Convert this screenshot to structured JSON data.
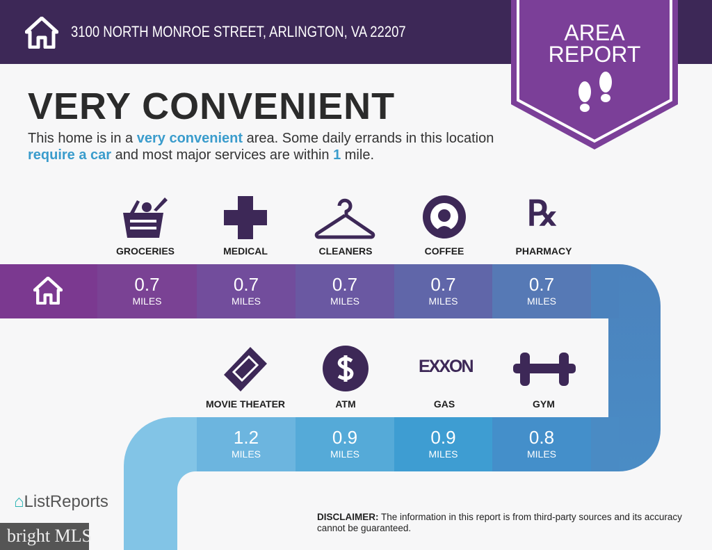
{
  "header": {
    "address": "3100 NORTH MONROE STREET, ARLINGTON, VA 22207",
    "icon": "house-icon"
  },
  "badge": {
    "line1": "AREA",
    "line2": "REPORT",
    "icon": "footprints-icon"
  },
  "summary": {
    "title": "VERY CONVENIENT",
    "p1": "This home is in a ",
    "hl1": "very convenient",
    "p2": " area. Some daily errands in this location ",
    "hl2": "require a car",
    "p3": " and most major services are within ",
    "hl3": "1",
    "p4": " mile."
  },
  "services": [
    {
      "label": "GROCERIES",
      "value": "0.7",
      "unit": "MILES",
      "icon": "basket-icon"
    },
    {
      "label": "MEDICAL",
      "value": "0.7",
      "unit": "MILES",
      "icon": "medical-cross-icon"
    },
    {
      "label": "CLEANERS",
      "value": "0.7",
      "unit": "MILES",
      "icon": "hanger-icon"
    },
    {
      "label": "COFFEE",
      "value": "0.7",
      "unit": "MILES",
      "icon": "starbucks-logo-icon"
    },
    {
      "label": "PHARMACY",
      "value": "0.7",
      "unit": "MILES",
      "icon": "rx-icon"
    },
    {
      "label": "MOVIE THEATER",
      "value": "1.2",
      "unit": "MILES",
      "icon": "ticket-icon"
    },
    {
      "label": "ATM",
      "value": "0.9",
      "unit": "MILES",
      "icon": "dollar-icon"
    },
    {
      "label": "GAS",
      "value": "0.9",
      "unit": "MILES",
      "icon": "exxon-logo-icon",
      "logo_text": "EXXON"
    },
    {
      "label": "GYM",
      "value": "0.8",
      "unit": "MILES",
      "icon": "dumbbell-icon"
    }
  ],
  "footer": {
    "brand": "ListReports",
    "disclaimer_label": "DISCLAIMER:",
    "disclaimer": " The information in this report is from third-party sources and its accuracy cannot be guaranteed.",
    "watermark": "bright MLS"
  }
}
